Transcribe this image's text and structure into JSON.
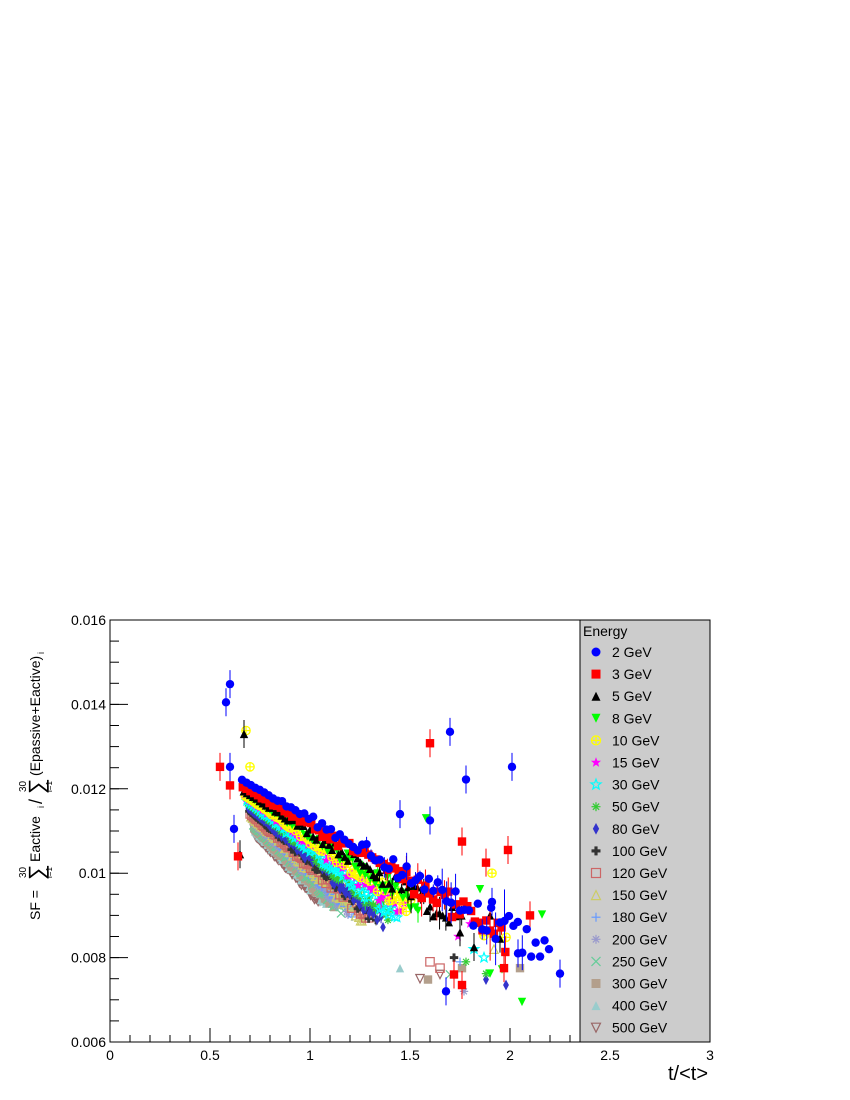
{
  "chart_data": {
    "type": "scatter",
    "title": "",
    "xlabel": "t/<t>",
    "ylabel": {
      "prefix": "SF = ",
      "num_top": "30",
      "num_sub": "i=1",
      "num_term": "Eactive",
      "num_index": "i",
      "den_top": "30",
      "den_sub": "i=1",
      "den_term": "(Epassive+Eactive)",
      "den_index": "i"
    },
    "xlim": [
      0,
      3
    ],
    "ylim": [
      0.006,
      0.016
    ],
    "x_ticks": [
      "0",
      "0.5",
      "1",
      "1.5",
      "2",
      "2.5",
      "3"
    ],
    "y_ticks": [
      "0.006",
      "0.008",
      "0.01",
      "0.012",
      "0.014",
      "0.016"
    ],
    "legend": {
      "title": "Energy",
      "placement": "right"
    },
    "series": [
      {
        "name": "2 GeV",
        "color": "#0000ff",
        "marker": "circle",
        "a": 0.0121,
        "b": 0.0027,
        "extra": [
          [
            0.58,
            0.01405
          ],
          [
            0.6,
            0.01448
          ],
          [
            0.6,
            0.01252
          ],
          [
            0.62,
            0.01105
          ],
          [
            1.7,
            0.01335
          ],
          [
            2.01,
            0.01252
          ],
          [
            1.78,
            0.01222
          ],
          [
            1.68,
            0.0072
          ],
          [
            2.25,
            0.00762
          ],
          [
            2.04,
            0.0081
          ],
          [
            1.6,
            0.01125
          ],
          [
            1.45,
            0.0114
          ],
          [
            1.91,
            0.00932
          ]
        ]
      },
      {
        "name": "3 GeV",
        "color": "#ff0000",
        "marker": "square",
        "a": 0.01195,
        "b": 0.0027,
        "extra": [
          [
            0.55,
            0.01252
          ],
          [
            0.6,
            0.01208
          ],
          [
            0.64,
            0.0104
          ],
          [
            1.6,
            0.01308
          ],
          [
            1.99,
            0.01055
          ],
          [
            2.1,
            0.009
          ],
          [
            1.88,
            0.01025
          ],
          [
            1.76,
            0.01075
          ],
          [
            1.97,
            0.00775
          ],
          [
            1.76,
            0.00735
          ],
          [
            1.72,
            0.0076
          ]
        ]
      },
      {
        "name": "5 GeV",
        "color": "#000000",
        "marker": "triangle",
        "a": 0.01185,
        "b": 0.0029,
        "extra": [
          [
            0.67,
            0.0133
          ],
          [
            0.65,
            0.01045
          ],
          [
            1.9,
            0.009
          ],
          [
            1.95,
            0.00845
          ],
          [
            1.75,
            0.0086
          ],
          [
            1.82,
            0.00825
          ]
        ]
      },
      {
        "name": "8 GeV",
        "color": "#00ff00",
        "marker": "triangle-down",
        "a": 0.0118,
        "b": 0.003,
        "extra": [
          [
            2.16,
            0.00902
          ],
          [
            2.06,
            0.00695
          ],
          [
            1.58,
            0.0113
          ],
          [
            1.96,
            0.00772
          ],
          [
            1.9,
            0.00762
          ],
          [
            1.85,
            0.00962
          ]
        ]
      },
      {
        "name": "10 GeV",
        "color": "#ffff00",
        "marker": "circle-plus",
        "a": 0.01175,
        "b": 0.0032,
        "extra": [
          [
            0.68,
            0.01338
          ],
          [
            0.7,
            0.01252
          ],
          [
            1.91,
            0.01
          ],
          [
            1.98,
            0.00848
          ],
          [
            1.87,
            0.00852
          ]
        ]
      },
      {
        "name": "15 GeV",
        "color": "#ff00ff",
        "marker": "star",
        "a": 0.0117,
        "b": 0.0034,
        "extra": [
          [
            1.74,
            0.0085
          ],
          [
            1.8,
            0.0088
          ]
        ]
      },
      {
        "name": "30 GeV",
        "color": "#00ffff",
        "marker": "star-open",
        "a": 0.01165,
        "b": 0.0036,
        "extra": [
          [
            1.87,
            0.008
          ],
          [
            1.82,
            0.0082
          ]
        ]
      },
      {
        "name": "50 GeV",
        "color": "#33cc33",
        "marker": "asterisk",
        "a": 0.0116,
        "b": 0.00375,
        "extra": [
          [
            1.88,
            0.00762
          ],
          [
            1.78,
            0.0079
          ]
        ]
      },
      {
        "name": "80 GeV",
        "color": "#3333cc",
        "marker": "diamond",
        "a": 0.0115,
        "b": 0.0039,
        "extra": [
          [
            1.98,
            0.00735
          ],
          [
            1.88,
            0.00748
          ]
        ]
      },
      {
        "name": "100 GeV",
        "color": "#333333",
        "marker": "cross",
        "a": 0.01145,
        "b": 0.004,
        "extra": [
          [
            1.72,
            0.008
          ]
        ]
      },
      {
        "name": "120 GeV",
        "color": "#cc6666",
        "marker": "square-open",
        "a": 0.0114,
        "b": 0.0041,
        "extra": [
          [
            1.65,
            0.00775
          ],
          [
            1.6,
            0.0079
          ]
        ]
      },
      {
        "name": "150 GeV",
        "color": "#cccc66",
        "marker": "triangle-open",
        "a": 0.01135,
        "b": 0.0042,
        "extra": [
          [
            1.92,
            0.0082
          ]
        ]
      },
      {
        "name": "180 GeV",
        "color": "#6699ff",
        "marker": "plus",
        "a": 0.0113,
        "b": 0.0043,
        "extra": [
          [
            1.75,
            0.0079
          ]
        ]
      },
      {
        "name": "200 GeV",
        "color": "#9999cc",
        "marker": "asterisk",
        "a": 0.01125,
        "b": 0.0044,
        "extra": [
          [
            1.77,
            0.0072
          ]
        ]
      },
      {
        "name": "250 GeV",
        "color": "#66cc99",
        "marker": "x",
        "a": 0.0112,
        "b": 0.0045,
        "extra": [
          [
            1.7,
            0.0076
          ]
        ]
      },
      {
        "name": "300 GeV",
        "color": "#b39f8c",
        "marker": "square",
        "a": 0.01115,
        "b": 0.0046,
        "extra": [
          [
            2.05,
            0.00775
          ],
          [
            1.76,
            0.00775
          ],
          [
            1.59,
            0.00748
          ]
        ]
      },
      {
        "name": "400 GeV",
        "color": "#99cccc",
        "marker": "triangle",
        "a": 0.0111,
        "b": 0.0047,
        "extra": [
          [
            1.45,
            0.00775
          ]
        ]
      },
      {
        "name": "500 GeV",
        "color": "#996666",
        "marker": "triangle-down-open",
        "a": 0.011,
        "b": 0.00475,
        "extra": [
          [
            1.55,
            0.0075
          ],
          [
            1.65,
            0.0076
          ]
        ]
      }
    ]
  }
}
